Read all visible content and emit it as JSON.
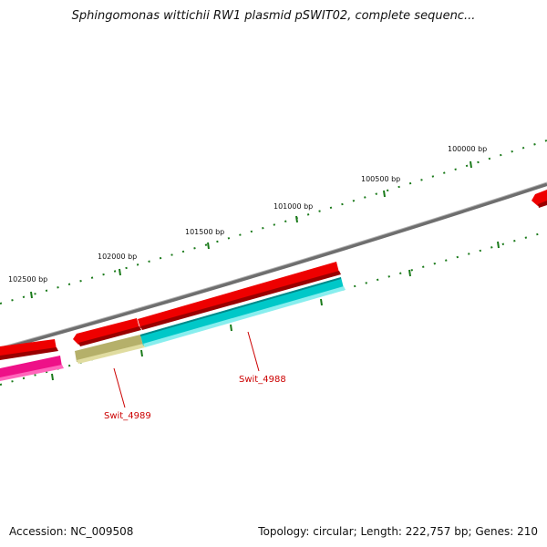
{
  "title": "Sphingomonas wittichii RW1 plasmid pSWIT02, complete sequenc...",
  "footer": {
    "accession": "Accession: NC_009508",
    "summary": "Topology: circular; Length: 222,757 bp; Genes: 210"
  },
  "ticks": [
    "102500 bp",
    "102000 bp",
    "101500 bp",
    "101000 bp",
    "100500 bp",
    "100000 bp"
  ],
  "genes": [
    {
      "name": "Swit_4988",
      "label": "Swit_4988"
    },
    {
      "name": "Swit_4989",
      "label": "Swit_4989"
    }
  ],
  "colors": {
    "backbone": "#808080",
    "tick": "#1a7a1a",
    "forward_feature": "#ee0000",
    "reverse_feature_cyan": "#00c8c8",
    "reverse_feature_olive": "#b5b06a",
    "reverse_feature_pink": "#ee1188",
    "label": "#cc0000"
  }
}
